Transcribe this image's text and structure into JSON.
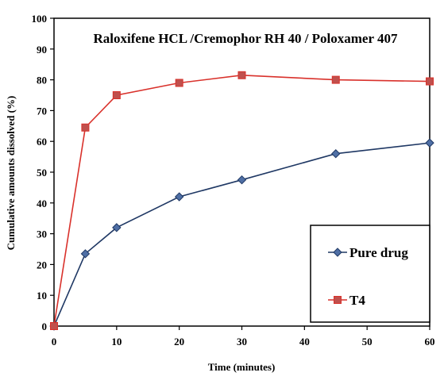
{
  "chart_data": {
    "type": "line",
    "title": "Raloxifene HCL /Cremophor RH 40 / Poloxamer 407",
    "xlabel": "Time (minutes)",
    "ylabel": "Cumulative amounts dissolved (%)",
    "xlim": [
      0,
      60
    ],
    "ylim": [
      0,
      100
    ],
    "xticks": [
      0,
      10,
      20,
      30,
      40,
      50,
      60
    ],
    "yticks": [
      0,
      10,
      20,
      30,
      40,
      50,
      60,
      70,
      80,
      90,
      100
    ],
    "grid": false,
    "legend_position": "bottom-right",
    "series": [
      {
        "name": "Pure drug",
        "marker": "diamond",
        "color": "#1f3864",
        "marker_fill": "#4f6fa5",
        "x": [
          0,
          5,
          10,
          20,
          30,
          45,
          60
        ],
        "y": [
          0,
          23.5,
          32,
          42,
          47.5,
          56,
          59.5
        ]
      },
      {
        "name": "T4",
        "marker": "square",
        "color": "#d9312b",
        "marker_fill": "#c0504d",
        "x": [
          0,
          5,
          10,
          20,
          30,
          45,
          60
        ],
        "y": [
          0,
          64.5,
          75,
          79,
          81.5,
          80,
          79.5
        ]
      }
    ]
  }
}
